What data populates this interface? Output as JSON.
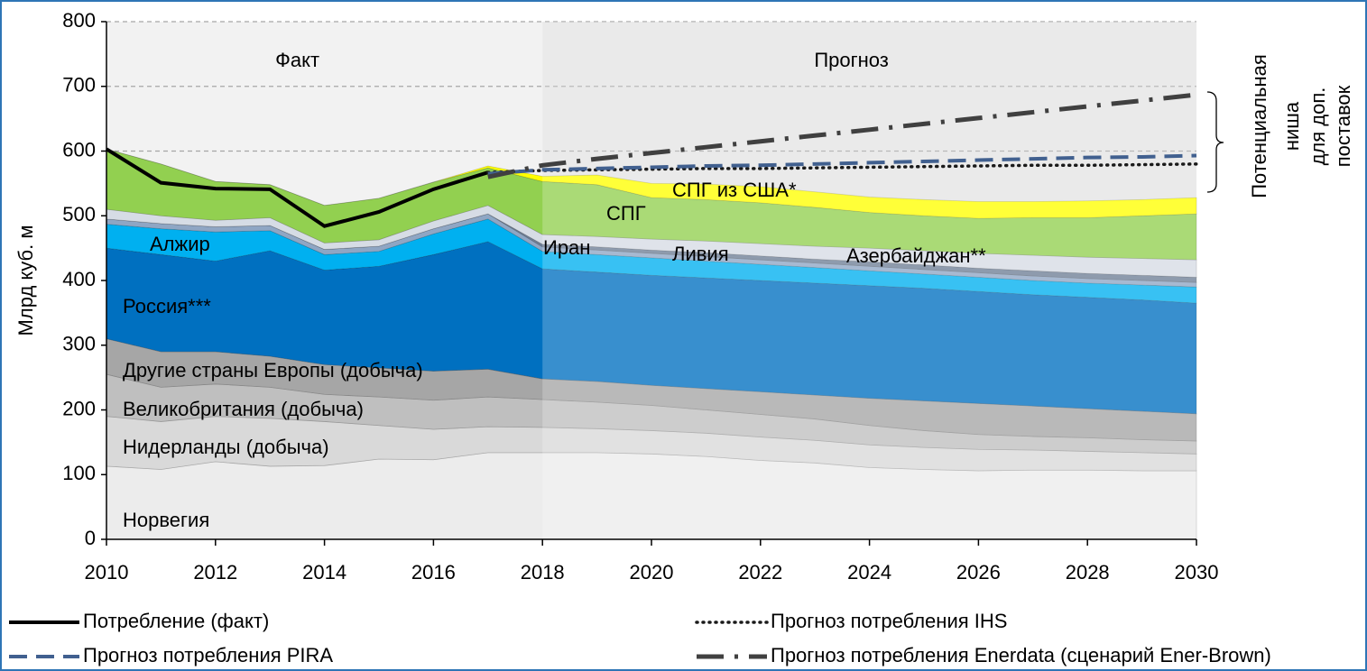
{
  "chart_data": {
    "type": "area",
    "stacked": true,
    "y_label": "Млрд куб. м",
    "x": [
      2010,
      2011,
      2012,
      2013,
      2014,
      2015,
      2016,
      2017,
      2018,
      2019,
      2020,
      2021,
      2022,
      2023,
      2024,
      2025,
      2026,
      2027,
      2028,
      2029,
      2030
    ],
    "xlim": [
      2010,
      2030
    ],
    "xticks": [
      2010,
      2012,
      2014,
      2016,
      2018,
      2020,
      2022,
      2024,
      2026,
      2028,
      2030
    ],
    "ylim": [
      0,
      800
    ],
    "yticks": [
      0,
      100,
      200,
      300,
      400,
      500,
      600,
      700,
      800
    ],
    "grid": true,
    "forecast_start": 2018,
    "region_labels": [
      "Факт",
      "Прогноз"
    ],
    "annotation": [
      "Потенциальная",
      "ниша",
      "для доп.",
      "поставок"
    ],
    "series": [
      {
        "name": "Норвегия",
        "color": "#ececec",
        "values": [
          113,
          108,
          120,
          113,
          114,
          124,
          123,
          134,
          134,
          134,
          132,
          128,
          122,
          118,
          111,
          108,
          106,
          107,
          107,
          106,
          106
        ]
      },
      {
        "name": "Нидерланды (добыча)",
        "color": "#d9d9d9",
        "values": [
          77,
          74,
          70,
          74,
          68,
          52,
          47,
          40,
          39,
          37,
          36,
          36,
          36,
          35,
          35,
          34,
          33,
          31,
          29,
          28,
          26
        ]
      },
      {
        "name": "Великобритания (добыча)",
        "color": "#bfbfbf",
        "values": [
          65,
          53,
          50,
          48,
          42,
          44,
          45,
          46,
          43,
          41,
          39,
          36,
          35,
          33,
          30,
          26,
          23,
          21,
          21,
          20,
          20
        ]
      },
      {
        "name": "Другие страны Европы (добыча)",
        "color": "#a6a6a6",
        "values": [
          55,
          55,
          50,
          48,
          46,
          45,
          45,
          43,
          32,
          32,
          31,
          33,
          35,
          37,
          42,
          46,
          48,
          47,
          45,
          44,
          42
        ]
      },
      {
        "name": "Россия***",
        "color": "#0070c0",
        "values": [
          140,
          150,
          140,
          163,
          146,
          157,
          180,
          197,
          170,
          169,
          170,
          171,
          172,
          173,
          174,
          174,
          173,
          172,
          172,
          172,
          171
        ]
      },
      {
        "name": "Алжир",
        "color": "#00b0f0",
        "values": [
          37,
          40,
          45,
          31,
          24,
          23,
          32,
          35,
          27,
          27,
          27,
          26,
          25,
          24,
          23,
          22,
          22,
          22,
          22,
          23,
          25
        ]
      },
      {
        "name": "Ливия",
        "color": "#8fa6c4",
        "values": [
          8,
          8,
          8,
          8,
          8,
          8,
          8,
          8,
          7,
          7,
          7,
          7,
          7,
          7,
          7,
          7,
          7,
          7,
          7,
          7,
          7
        ]
      },
      {
        "name": "Иран",
        "color": "#6f7f97",
        "values": [
          0,
          0,
          0,
          0,
          0,
          0,
          0,
          0,
          4,
          5,
          5,
          6,
          6,
          6,
          7,
          7,
          7,
          8,
          8,
          8,
          8
        ]
      },
      {
        "name": "Азербайджан**",
        "color": "#d6dce5",
        "values": [
          15,
          12,
          10,
          12,
          10,
          10,
          12,
          13,
          15,
          16,
          17,
          18,
          19,
          20,
          21,
          22,
          23,
          24,
          25,
          26,
          27
        ]
      },
      {
        "name": "СПГ",
        "color": "#92d050",
        "values": [
          93,
          80,
          60,
          51,
          58,
          64,
          60,
          58,
          82,
          80,
          64,
          64,
          63,
          60,
          55,
          54,
          54,
          58,
          61,
          66,
          71
        ]
      },
      {
        "name": "СПГ из США*",
        "color": "#ffff00",
        "values": [
          0,
          0,
          0,
          0,
          0,
          0,
          0,
          3,
          8,
          15,
          22,
          24,
          25,
          24,
          24,
          25,
          26,
          25,
          26,
          25,
          25
        ]
      }
    ],
    "line_series": [
      {
        "name": "Потребление (факт)",
        "color": "#000000",
        "style": "solid",
        "values": [
          603,
          551,
          542,
          541,
          484,
          506,
          541,
          567,
          null,
          null,
          null,
          null,
          null,
          null,
          null,
          null,
          null,
          null,
          null,
          null,
          null
        ]
      },
      {
        "name": "Прогноз потребления IHS",
        "color": "#1a1a1a",
        "style": "dotted",
        "values": [
          null,
          null,
          null,
          null,
          null,
          null,
          null,
          567,
          570,
          571,
          572,
          573,
          573,
          574,
          575,
          576,
          577,
          578,
          578,
          579,
          580
        ]
      },
      {
        "name": "Прогноз потребления PIRA",
        "color": "#41608f",
        "style": "dashed",
        "values": [
          null,
          null,
          null,
          null,
          null,
          null,
          null,
          565,
          571,
          573,
          575,
          577,
          578,
          580,
          582,
          584,
          586,
          588,
          590,
          591,
          593
        ]
      },
      {
        "name": "Прогноз потребления Enerdata (сценарий Ener-Brown)",
        "color": "#404040",
        "style": "dashdot",
        "values": [
          null,
          null,
          null,
          null,
          null,
          null,
          null,
          560,
          578,
          588,
          597,
          606,
          615,
          624,
          633,
          642,
          651,
          660,
          669,
          678,
          687
        ]
      }
    ]
  }
}
